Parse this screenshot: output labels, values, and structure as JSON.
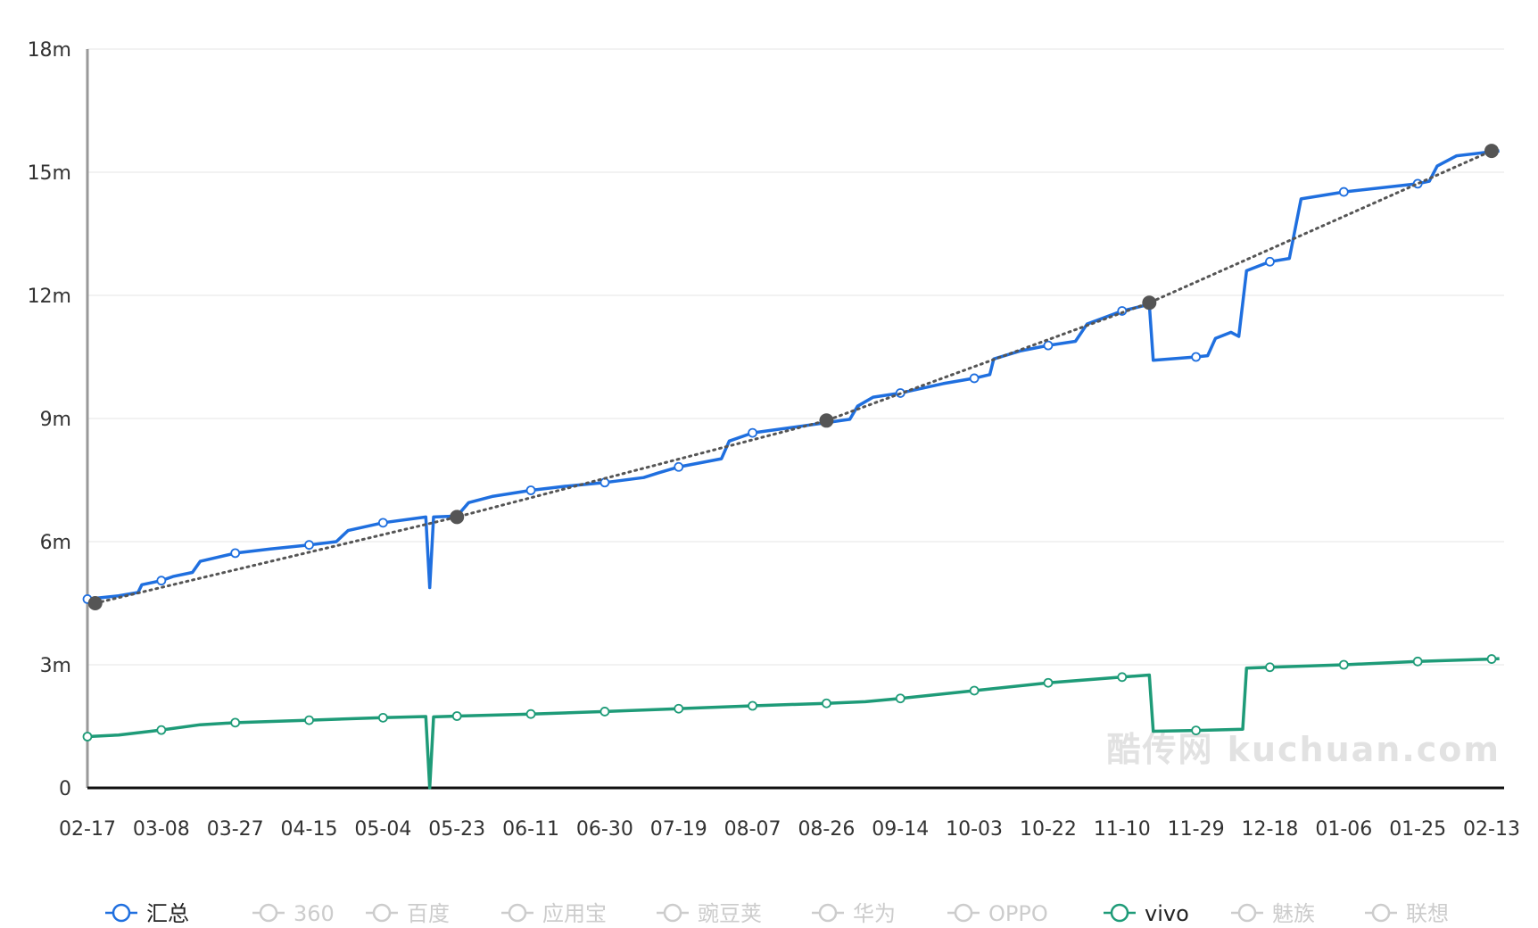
{
  "chart_data": {
    "type": "line",
    "title": "",
    "xlabel": "",
    "ylabel": "",
    "ylim": [
      0,
      18000000
    ],
    "y_ticks": [
      {
        "value": 0,
        "label": "0"
      },
      {
        "value": 3000000,
        "label": "3m"
      },
      {
        "value": 6000000,
        "label": "6m"
      },
      {
        "value": 9000000,
        "label": "9m"
      },
      {
        "value": 12000000,
        "label": "12m"
      },
      {
        "value": 15000000,
        "label": "15m"
      },
      {
        "value": 18000000,
        "label": "18m"
      }
    ],
    "x_ticks": [
      "02-17",
      "03-08",
      "03-27",
      "04-15",
      "05-04",
      "05-23",
      "06-11",
      "06-30",
      "07-19",
      "08-07",
      "08-26",
      "09-14",
      "10-03",
      "10-22",
      "11-10",
      "11-29",
      "12-18",
      "01-06",
      "01-25",
      "02-13"
    ],
    "grid": true,
    "legend_position": "bottom",
    "watermark": "酷传网 kuchuan.com",
    "series": [
      {
        "name": "汇总",
        "color": "#1f6fdf",
        "enabled": true,
        "points": [
          [
            "02-17",
            4600000
          ],
          [
            "02-25",
            4680000
          ],
          [
            "03-02",
            4760000
          ],
          [
            "03-03",
            4950000
          ],
          [
            "03-08",
            5050000
          ],
          [
            "03-11",
            5150000
          ],
          [
            "03-16",
            5250000
          ],
          [
            "03-18",
            5520000
          ],
          [
            "03-27",
            5720000
          ],
          [
            "04-05",
            5820000
          ],
          [
            "04-15",
            5920000
          ],
          [
            "04-22",
            6000000
          ],
          [
            "04-25",
            6270000
          ],
          [
            "05-04",
            6460000
          ],
          [
            "05-15",
            6600000
          ],
          [
            "05-16",
            4880000
          ],
          [
            "05-17",
            6600000
          ],
          [
            "05-22",
            6620000
          ],
          [
            "05-23",
            6620000
          ],
          [
            "05-26",
            6950000
          ],
          [
            "06-01",
            7100000
          ],
          [
            "06-11",
            7250000
          ],
          [
            "06-20",
            7350000
          ],
          [
            "06-30",
            7440000
          ],
          [
            "07-10",
            7560000
          ],
          [
            "07-14",
            7680000
          ],
          [
            "07-19",
            7820000
          ],
          [
            "07-30",
            8020000
          ],
          [
            "08-01",
            8450000
          ],
          [
            "08-07",
            8650000
          ],
          [
            "08-20",
            8820000
          ],
          [
            "08-26",
            8900000
          ],
          [
            "09-01",
            8980000
          ],
          [
            "09-03",
            9300000
          ],
          [
            "09-07",
            9520000
          ],
          [
            "09-14",
            9620000
          ],
          [
            "09-25",
            9850000
          ],
          [
            "10-03",
            9980000
          ],
          [
            "10-07",
            10070000
          ],
          [
            "10-08",
            10450000
          ],
          [
            "10-15",
            10650000
          ],
          [
            "10-22",
            10780000
          ],
          [
            "10-29",
            10880000
          ],
          [
            "11-01",
            11300000
          ],
          [
            "11-10",
            11620000
          ],
          [
            "11-17",
            11780000
          ],
          [
            "11-18",
            10420000
          ],
          [
            "11-29",
            10500000
          ],
          [
            "12-02",
            10530000
          ],
          [
            "12-04",
            10950000
          ],
          [
            "12-08",
            11100000
          ],
          [
            "12-10",
            11000000
          ],
          [
            "12-12",
            12600000
          ],
          [
            "12-18",
            12820000
          ],
          [
            "12-23",
            12900000
          ],
          [
            "12-26",
            14350000
          ],
          [
            "01-06",
            14520000
          ],
          [
            "01-25",
            14720000
          ],
          [
            "01-28",
            14780000
          ],
          [
            "01-30",
            15150000
          ],
          [
            "02-04",
            15400000
          ],
          [
            "02-13",
            15500000
          ],
          [
            "02-15",
            15520000
          ]
        ],
        "markers": [
          [
            "02-17",
            4600000
          ],
          [
            "03-08",
            5050000
          ],
          [
            "03-27",
            5720000
          ],
          [
            "04-15",
            5920000
          ],
          [
            "05-04",
            6460000
          ],
          [
            "05-23",
            6620000
          ],
          [
            "06-11",
            7250000
          ],
          [
            "06-30",
            7440000
          ],
          [
            "07-19",
            7820000
          ],
          [
            "08-07",
            8650000
          ],
          [
            "08-26",
            8900000
          ],
          [
            "09-14",
            9620000
          ],
          [
            "10-03",
            9980000
          ],
          [
            "10-22",
            10780000
          ],
          [
            "11-10",
            11620000
          ],
          [
            "11-29",
            10500000
          ],
          [
            "12-18",
            12820000
          ],
          [
            "01-06",
            14520000
          ],
          [
            "01-25",
            14720000
          ],
          [
            "02-13",
            15500000
          ]
        ]
      },
      {
        "name": "360",
        "color": "#cccccc",
        "enabled": false
      },
      {
        "name": "百度",
        "color": "#cccccc",
        "enabled": false
      },
      {
        "name": "应用宝",
        "color": "#cccccc",
        "enabled": false
      },
      {
        "name": "豌豆荚",
        "color": "#cccccc",
        "enabled": false
      },
      {
        "name": "华为",
        "color": "#cccccc",
        "enabled": false
      },
      {
        "name": "OPPO",
        "color": "#cccccc",
        "enabled": false
      },
      {
        "name": "vivo",
        "color": "#1e9b78",
        "enabled": true,
        "points": [
          [
            "02-17",
            1250000
          ],
          [
            "02-25",
            1290000
          ],
          [
            "03-08",
            1410000
          ],
          [
            "03-18",
            1540000
          ],
          [
            "03-27",
            1590000
          ],
          [
            "04-15",
            1650000
          ],
          [
            "05-04",
            1710000
          ],
          [
            "05-15",
            1740000
          ],
          [
            "05-16",
            0
          ],
          [
            "05-17",
            1730000
          ],
          [
            "05-23",
            1750000
          ],
          [
            "06-11",
            1800000
          ],
          [
            "06-30",
            1860000
          ],
          [
            "07-19",
            1930000
          ],
          [
            "08-07",
            2000000
          ],
          [
            "08-26",
            2060000
          ],
          [
            "09-05",
            2100000
          ],
          [
            "09-14",
            2180000
          ],
          [
            "10-03",
            2370000
          ],
          [
            "10-22",
            2560000
          ],
          [
            "11-10",
            2700000
          ],
          [
            "11-17",
            2750000
          ],
          [
            "11-18",
            1380000
          ],
          [
            "11-29",
            1400000
          ],
          [
            "12-11",
            1430000
          ],
          [
            "12-12",
            2920000
          ],
          [
            "12-18",
            2940000
          ],
          [
            "01-06",
            3000000
          ],
          [
            "01-25",
            3080000
          ],
          [
            "02-13",
            3140000
          ],
          [
            "02-15",
            3150000
          ]
        ],
        "markers": [
          [
            "02-17",
            1250000
          ],
          [
            "03-08",
            1410000
          ],
          [
            "03-27",
            1590000
          ],
          [
            "04-15",
            1650000
          ],
          [
            "05-04",
            1710000
          ],
          [
            "05-23",
            1750000
          ],
          [
            "06-11",
            1800000
          ],
          [
            "06-30",
            1860000
          ],
          [
            "07-19",
            1930000
          ],
          [
            "08-07",
            2000000
          ],
          [
            "08-26",
            2060000
          ],
          [
            "09-14",
            2180000
          ],
          [
            "10-03",
            2370000
          ],
          [
            "10-22",
            2560000
          ],
          [
            "11-10",
            2700000
          ],
          [
            "11-29",
            1400000
          ],
          [
            "12-18",
            2940000
          ],
          [
            "01-06",
            3000000
          ],
          [
            "01-25",
            3080000
          ],
          [
            "02-13",
            3140000
          ]
        ]
      },
      {
        "name": "魅族",
        "color": "#cccccc",
        "enabled": false
      },
      {
        "name": "联想",
        "color": "#cccccc",
        "enabled": false
      }
    ],
    "trendline": {
      "color": "#555555",
      "style": "dotted",
      "points": [
        [
          "02-19",
          4500000
        ],
        [
          "05-23",
          6600000
        ],
        [
          "08-26",
          8950000
        ],
        [
          "11-17",
          11820000
        ],
        [
          "02-13",
          15520000
        ]
      ]
    }
  }
}
